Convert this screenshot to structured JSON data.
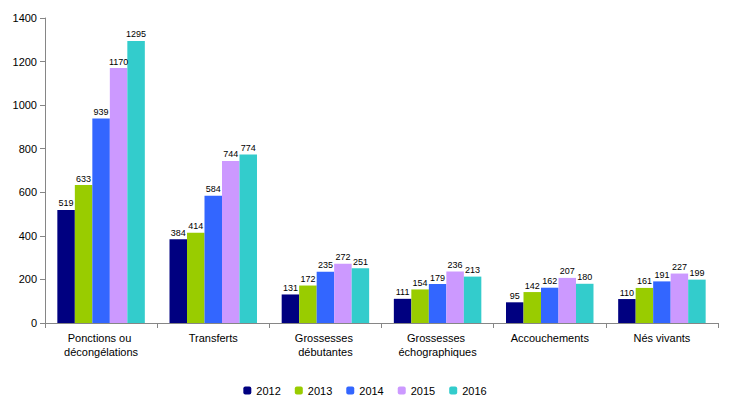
{
  "chart_data": {
    "type": "bar",
    "categories": [
      "Ponctions ou décongélations",
      "Transferts",
      "Grossesses débutantes",
      "Grossesses échographiques",
      "Accouchements",
      "Nés vivants"
    ],
    "series": [
      {
        "name": "2012",
        "color": "#000080",
        "values": [
          519,
          384,
          131,
          111,
          95,
          110
        ]
      },
      {
        "name": "2013",
        "color": "#99CC00",
        "values": [
          633,
          414,
          172,
          154,
          142,
          161
        ]
      },
      {
        "name": "2014",
        "color": "#3366FF",
        "values": [
          939,
          584,
          235,
          179,
          162,
          191
        ]
      },
      {
        "name": "2015",
        "color": "#CC99FF",
        "values": [
          1170,
          744,
          272,
          236,
          207,
          227
        ]
      },
      {
        "name": "2016",
        "color": "#33CCCC",
        "values": [
          1295,
          774,
          251,
          213,
          180,
          199
        ]
      }
    ],
    "ylim": [
      0,
      1400
    ],
    "yticks": [
      0,
      200,
      400,
      600,
      800,
      1000,
      1200,
      1400
    ],
    "grid": false,
    "legend": "bottom",
    "data_labels": true
  }
}
